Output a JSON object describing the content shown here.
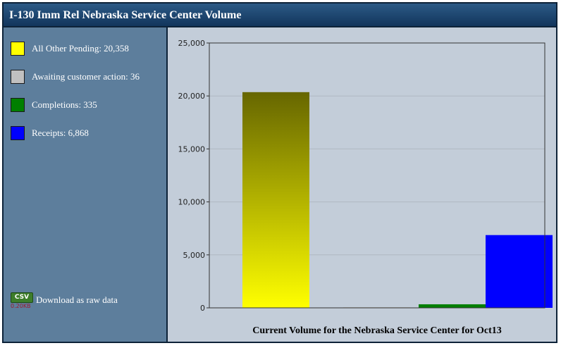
{
  "window": {
    "title": "I-130 Imm Rel Nebraska Service Center Volume"
  },
  "legend": [
    {
      "label": "All Other Pending: 20,358",
      "color": "#ffff00"
    },
    {
      "label": "Awaiting customer action: 36",
      "color": "#c0c0c0"
    },
    {
      "label": "Completions: 335",
      "color": "#007f00"
    },
    {
      "label": "Receipts: 6,868",
      "color": "#0000ff"
    }
  ],
  "download": {
    "badge": "CSV",
    "size": "0.20KB",
    "label": "Download as raw data"
  },
  "chart_data": {
    "type": "bar",
    "title": "Current Volume for the Nebraska Service Center for Oct13",
    "xlabel": "",
    "ylabel": "",
    "ylim": [
      0,
      25000
    ],
    "yticks": [
      0,
      5000,
      10000,
      15000,
      20000,
      25000
    ],
    "ytick_labels": [
      "0",
      "5,000",
      "10,000",
      "15,000",
      "20,000",
      "25,000"
    ],
    "grid": true,
    "legend_position": "left-panel",
    "series": [
      {
        "name": "All Other Pending",
        "value": 20358,
        "color": "#ffff00",
        "gradient_top": "#666600"
      },
      {
        "name": "Awaiting customer action",
        "value": 36,
        "color": "#c0c0c0"
      },
      {
        "name": "Completions",
        "value": 335,
        "color": "#007f00"
      },
      {
        "name": "Receipts",
        "value": 6868,
        "color": "#0000ff"
      }
    ]
  }
}
